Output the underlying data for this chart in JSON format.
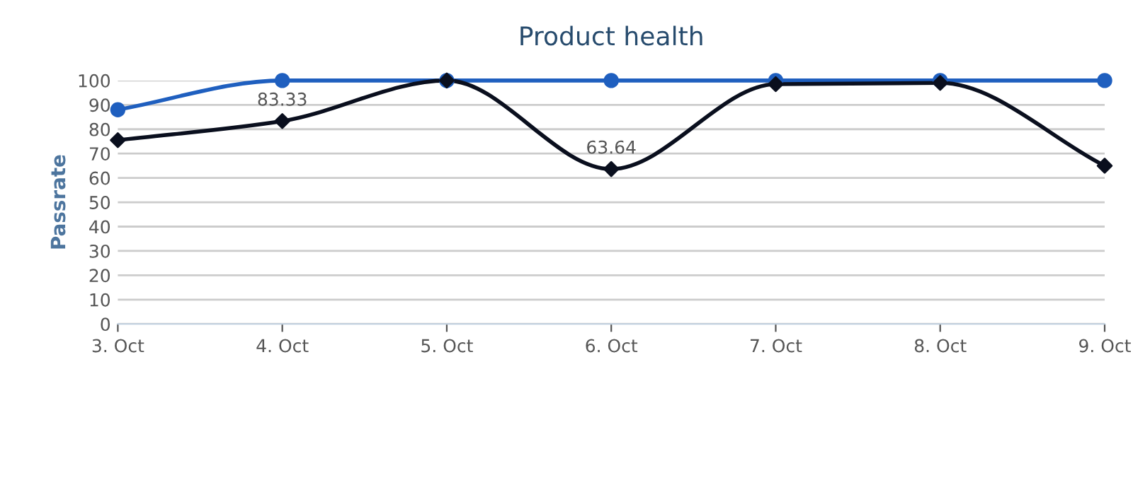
{
  "chart_data": {
    "type": "line",
    "title": "Product health",
    "ylabel": "Passrate",
    "categories": [
      "3. Oct",
      "4. Oct",
      "5. Oct",
      "6. Oct",
      "7. Oct",
      "8. Oct",
      "9. Oct"
    ],
    "series": [
      {
        "color": "#1f5fbf",
        "marker": "circle",
        "values": [
          88,
          100,
          100,
          100,
          100,
          100,
          100
        ]
      },
      {
        "color": "#0a0f1e",
        "marker": "diamond",
        "values": [
          75.5,
          83.33,
          100,
          63.64,
          98.5,
          99,
          65
        ],
        "value_labels": [
          null,
          "83.33",
          null,
          "63.64",
          null,
          null,
          null
        ]
      }
    ],
    "ylim": [
      0,
      100
    ],
    "yticks": [
      0,
      10,
      20,
      30,
      40,
      50,
      60,
      70,
      80,
      90,
      100
    ],
    "grid": "y",
    "legend": false
  }
}
